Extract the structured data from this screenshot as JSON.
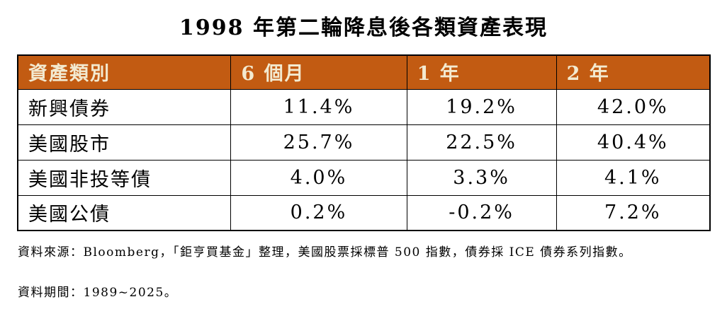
{
  "title": "1998 年第二輪降息後各類資產表現",
  "table": {
    "columns": [
      "資產類別",
      "6 個月",
      "1 年",
      "2 年"
    ],
    "rows": [
      {
        "label": "新興債券",
        "values": [
          "11.4%",
          "19.2%",
          "42.0%"
        ]
      },
      {
        "label": "美國股市",
        "values": [
          "25.7%",
          "22.5%",
          "40.4%"
        ]
      },
      {
        "label": "美國非投等債",
        "values": [
          "4.0%",
          "3.3%",
          "4.1%"
        ]
      },
      {
        "label": "美國公債",
        "values": [
          "0.2%",
          "-0.2%",
          "7.2%"
        ]
      }
    ]
  },
  "footnotes": {
    "source": "資料來源：Bloomberg，「鉅亨買基金」整理，美國股票採標普 500 指數，債券採 ICE 債券系列指數。",
    "period": "資料期間：1989~2025。"
  },
  "colors": {
    "header_bg": "#c25b12",
    "header_text": "#f3ead0",
    "body_text": "#000000",
    "border": "#000000",
    "page_bg": "#ffffff"
  },
  "chart_data": {
    "type": "table",
    "title": "1998 年第二輪降息後各類資產表現",
    "categories": [
      "6 個月",
      "1 年",
      "2 年"
    ],
    "series": [
      {
        "name": "新興債券",
        "values": [
          11.4,
          19.2,
          42.0
        ]
      },
      {
        "name": "美國股市",
        "values": [
          25.7,
          22.5,
          40.4
        ]
      },
      {
        "name": "美國非投等債",
        "values": [
          4.0,
          3.3,
          4.1
        ]
      },
      {
        "name": "美國公債",
        "values": [
          0.2,
          -0.2,
          7.2
        ]
      }
    ],
    "value_unit": "%",
    "notes": [
      "資料來源：Bloomberg，「鉅亨買基金」整理，美國股票採標普 500 指數，債券採 ICE 債券系列指數。",
      "資料期間：1989~2025。"
    ]
  }
}
